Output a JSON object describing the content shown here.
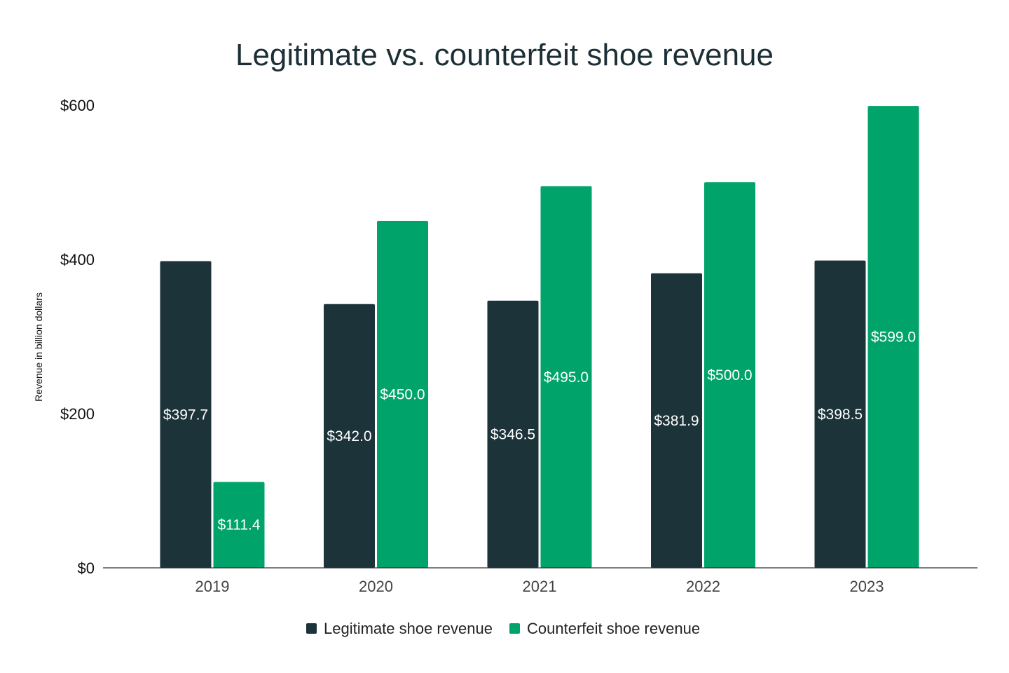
{
  "chart_data": {
    "type": "bar",
    "title": "Legitimate vs. counterfeit shoe revenue",
    "xlabel": "",
    "ylabel": "Revenue in billion dollars",
    "categories": [
      "2019",
      "2020",
      "2021",
      "2022",
      "2023"
    ],
    "ylim": [
      0,
      600
    ],
    "y_ticks": [
      0,
      200,
      400,
      600
    ],
    "y_tick_labels": [
      "$0",
      "$200",
      "$400",
      "$600"
    ],
    "grid": false,
    "legend_position": "bottom",
    "series": [
      {
        "name": "Legitimate shoe revenue",
        "color": "#1c333a",
        "values": [
          397.7,
          342.0,
          346.5,
          381.9,
          398.5
        ],
        "labels": [
          "$397.7",
          "$342.0",
          "$346.5",
          "$381.9",
          "$398.5"
        ]
      },
      {
        "name": "Counterfeit shoe revenue",
        "color": "#00a46a",
        "values": [
          111.4,
          450.0,
          495.0,
          500.0,
          599.0
        ],
        "labels": [
          "$111.4",
          "$450.0",
          "$495.0",
          "$500.0",
          "$599.0"
        ]
      }
    ]
  }
}
